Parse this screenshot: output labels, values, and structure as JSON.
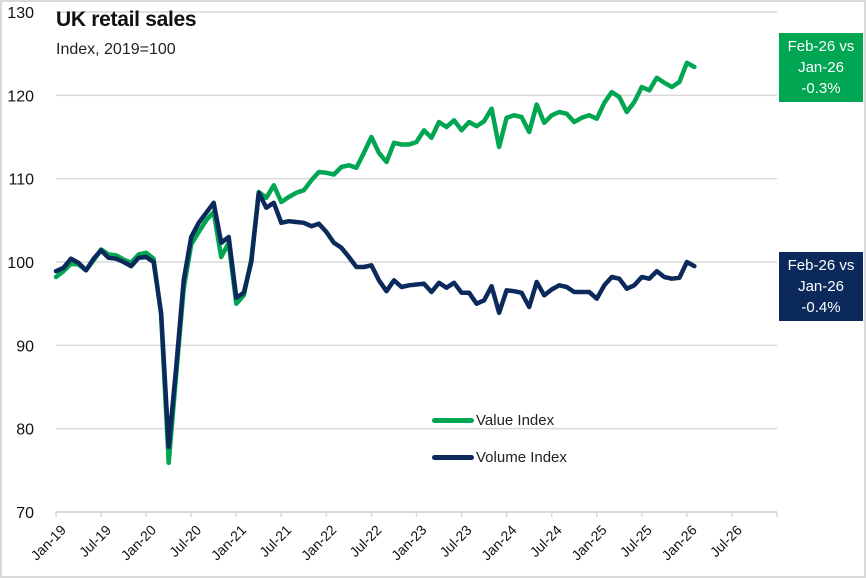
{
  "chart_data": {
    "type": "line",
    "title": "UK retail sales",
    "subtitle": "Index, 2019=100",
    "xlabel": "",
    "ylabel": "",
    "ylim": [
      70,
      130
    ],
    "yticks": [
      70,
      80,
      90,
      100,
      110,
      120,
      130
    ],
    "grid": true,
    "x_start": "Jan-19",
    "x_end": "Jan-27",
    "xtick_labels": [
      "Jan-19",
      "Jul-19",
      "Jan-20",
      "Jul-20",
      "Jan-21",
      "Jul-21",
      "Jan-22",
      "Jul-22",
      "Jan-23",
      "Jul-23",
      "Jan-24",
      "Jul-24",
      "Jan-25",
      "Jul-25",
      "Jan-26",
      "Jul-26"
    ],
    "legend_position": "bottom-center",
    "series": [
      {
        "name": "Value Index",
        "color": "#00A651",
        "values": [
          98.2,
          98.9,
          99.8,
          99.7,
          99.0,
          100.2,
          101.5,
          100.9,
          100.8,
          100.3,
          99.9,
          100.9,
          101.1,
          100.4,
          93.7,
          75.9,
          86.5,
          96.8,
          102.1,
          103.6,
          105.0,
          106.0,
          100.6,
          102.3,
          95.0,
          96.0,
          100.3,
          108.4,
          107.7,
          109.2,
          107.2,
          107.8,
          108.3,
          108.6,
          109.8,
          110.8,
          110.7,
          110.5,
          111.4,
          111.6,
          111.3,
          113.1,
          115.0,
          113.1,
          112.0,
          114.3,
          114.1,
          114.1,
          114.4,
          115.8,
          114.9,
          116.8,
          116.2,
          117.0,
          115.8,
          116.8,
          116.3,
          116.9,
          118.4,
          113.8,
          117.3,
          117.6,
          117.4,
          115.6,
          118.9,
          116.7,
          117.6,
          118.0,
          117.8,
          116.8,
          117.3,
          117.6,
          117.2,
          119.1,
          120.4,
          119.8,
          118.0,
          119.2,
          121.0,
          120.6,
          122.1,
          121.5,
          121.0,
          121.6,
          123.9,
          123.4
        ]
      },
      {
        "name": "Volume Index",
        "color": "#0B2A5B",
        "values": [
          98.9,
          99.3,
          100.4,
          99.9,
          99.0,
          100.4,
          101.4,
          100.5,
          100.4,
          100.0,
          99.5,
          100.5,
          100.6,
          100.0,
          93.9,
          77.8,
          87.4,
          97.8,
          103.0,
          104.7,
          105.9,
          107.1,
          102.3,
          103.0,
          95.7,
          96.3,
          100.0,
          108.3,
          106.5,
          107.1,
          104.7,
          104.9,
          104.8,
          104.7,
          104.3,
          104.6,
          103.6,
          102.3,
          101.7,
          100.6,
          99.4,
          99.4,
          99.6,
          97.8,
          96.5,
          97.8,
          97.0,
          97.2,
          97.3,
          97.4,
          96.4,
          97.5,
          96.9,
          97.5,
          96.3,
          96.3,
          95.0,
          95.4,
          97.1,
          93.9,
          96.6,
          96.5,
          96.3,
          94.6,
          97.6,
          96.0,
          96.7,
          97.2,
          97.0,
          96.4,
          96.4,
          96.4,
          95.6,
          97.2,
          98.2,
          98.0,
          96.8,
          97.2,
          98.2,
          98.0,
          98.9,
          98.2,
          98.0,
          98.1,
          100.0,
          99.5
        ]
      }
    ],
    "annotations": [
      {
        "series": "Value Index",
        "lines": [
          "Feb-26 vs",
          "Jan-26",
          "-0.3%"
        ],
        "color": "#00A651"
      },
      {
        "series": "Volume Index",
        "lines": [
          "Feb-26 vs",
          "Jan-26",
          "-0.4%"
        ],
        "color": "#0B2A5B"
      }
    ]
  },
  "colors": {
    "grid": "#d9d9d9",
    "axis_text": "#111111",
    "frame": "#d9d9d9"
  }
}
